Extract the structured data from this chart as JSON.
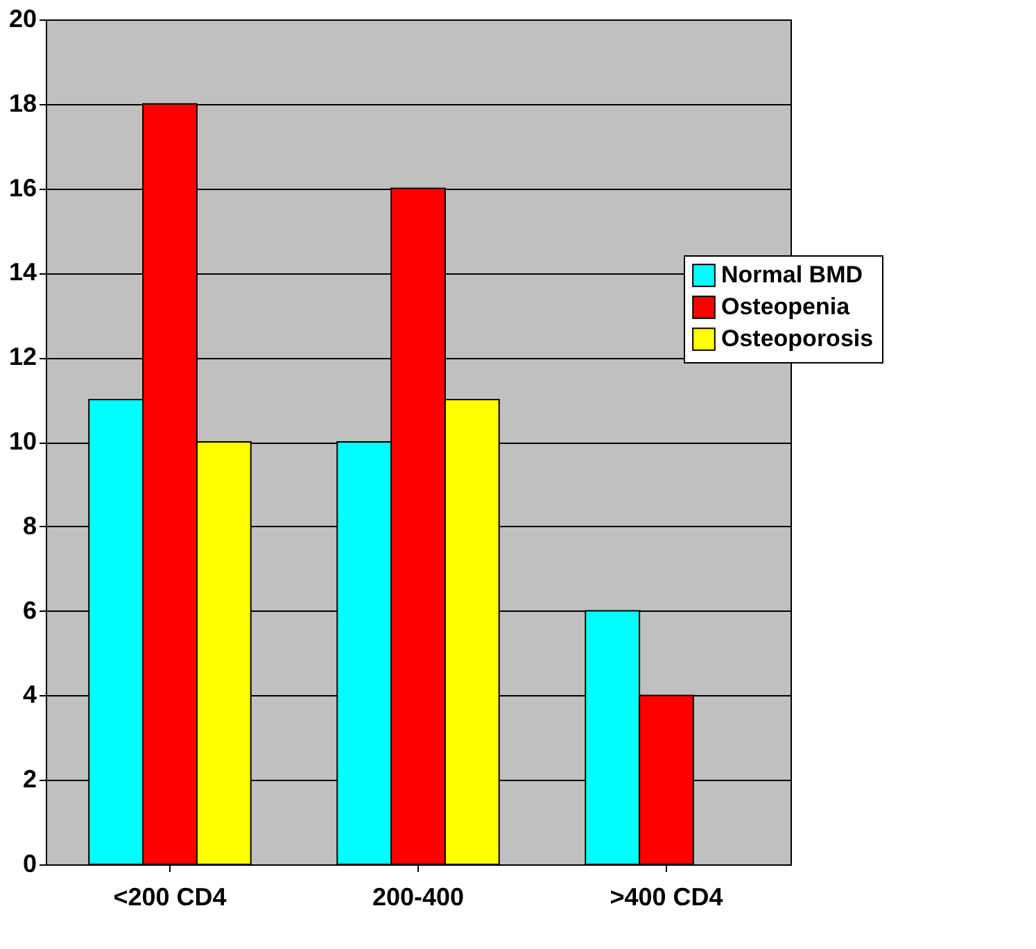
{
  "chart_data": {
    "type": "bar",
    "categories": [
      "<200 CD4",
      "200-400",
      ">400  CD4"
    ],
    "series": [
      {
        "name": "Normal BMD",
        "color": "#00ffff",
        "values": [
          11,
          10,
          6
        ]
      },
      {
        "name": "Osteopenia",
        "color": "#ff0000",
        "values": [
          18,
          16,
          4
        ]
      },
      {
        "name": "Osteoporosis",
        "color": "#ffff00",
        "values": [
          10,
          11,
          null
        ]
      }
    ],
    "ylim": [
      0,
      20
    ],
    "yticks": [
      0,
      2,
      4,
      6,
      8,
      10,
      12,
      14,
      16,
      18,
      20
    ],
    "grid": "y",
    "legend": "right"
  }
}
